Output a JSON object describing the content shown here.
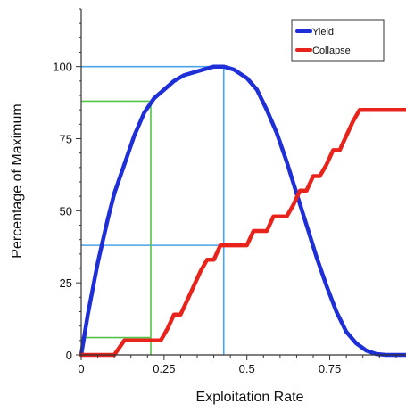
{
  "chart_data": {
    "type": "line",
    "xlabel": "Exploitation Rate",
    "ylabel": "Percentage of Maximum",
    "xlim": [
      0,
      0.98
    ],
    "ylim": [
      0,
      120
    ],
    "x_ticks": [
      0,
      0.25,
      0.5,
      0.75
    ],
    "x_tick_labels": [
      "0",
      "0.25",
      "0.5",
      "0.75"
    ],
    "y_ticks": [
      0,
      25,
      50,
      75,
      100
    ],
    "y_tick_labels": [
      "0",
      "25",
      "50",
      "75",
      "100"
    ],
    "legend_position": "top-right",
    "series": [
      {
        "name": "Yield",
        "color": "#1f2fd8",
        "points": [
          [
            0,
            0
          ],
          [
            0.02,
            14
          ],
          [
            0.05,
            32
          ],
          [
            0.08,
            47
          ],
          [
            0.1,
            56
          ],
          [
            0.13,
            66
          ],
          [
            0.16,
            76
          ],
          [
            0.19,
            84
          ],
          [
            0.22,
            89
          ],
          [
            0.25,
            92
          ],
          [
            0.28,
            95
          ],
          [
            0.31,
            97
          ],
          [
            0.34,
            98
          ],
          [
            0.37,
            99
          ],
          [
            0.4,
            100
          ],
          [
            0.43,
            100
          ],
          [
            0.46,
            99
          ],
          [
            0.5,
            96
          ],
          [
            0.53,
            92
          ],
          [
            0.56,
            85
          ],
          [
            0.59,
            77
          ],
          [
            0.62,
            67
          ],
          [
            0.65,
            56
          ],
          [
            0.68,
            45
          ],
          [
            0.71,
            34
          ],
          [
            0.74,
            24
          ],
          [
            0.77,
            15
          ],
          [
            0.8,
            8
          ],
          [
            0.83,
            4
          ],
          [
            0.86,
            1.5
          ],
          [
            0.89,
            0.3
          ],
          [
            0.92,
            0
          ],
          [
            0.98,
            0
          ]
        ]
      },
      {
        "name": "Collapse",
        "color": "#e8231c",
        "points": [
          [
            0,
            0
          ],
          [
            0.1,
            0
          ],
          [
            0.13,
            5
          ],
          [
            0.24,
            5
          ],
          [
            0.26,
            9
          ],
          [
            0.28,
            14
          ],
          [
            0.3,
            14
          ],
          [
            0.32,
            19
          ],
          [
            0.34,
            24
          ],
          [
            0.36,
            29
          ],
          [
            0.38,
            33
          ],
          [
            0.4,
            33
          ],
          [
            0.42,
            38
          ],
          [
            0.5,
            38
          ],
          [
            0.52,
            43
          ],
          [
            0.56,
            43
          ],
          [
            0.58,
            48
          ],
          [
            0.62,
            48
          ],
          [
            0.64,
            52
          ],
          [
            0.66,
            57
          ],
          [
            0.68,
            57
          ],
          [
            0.7,
            62
          ],
          [
            0.72,
            62
          ],
          [
            0.74,
            66
          ],
          [
            0.76,
            71
          ],
          [
            0.78,
            71
          ],
          [
            0.8,
            76
          ],
          [
            0.82,
            81
          ],
          [
            0.84,
            85
          ],
          [
            0.9,
            85
          ],
          [
            0.98,
            85
          ]
        ]
      }
    ],
    "guide_lines": [
      {
        "color": "#4aa3e8",
        "x": 0.43,
        "y": 100,
        "from_y": 0
      },
      {
        "color": "#4aa3e8",
        "x": 0.43,
        "y": 38
      },
      {
        "color": "#55c24a",
        "x": 0.21,
        "y": 88,
        "from_y": 0
      },
      {
        "color": "#55c24a",
        "x": 0.21,
        "y": 6
      }
    ]
  }
}
